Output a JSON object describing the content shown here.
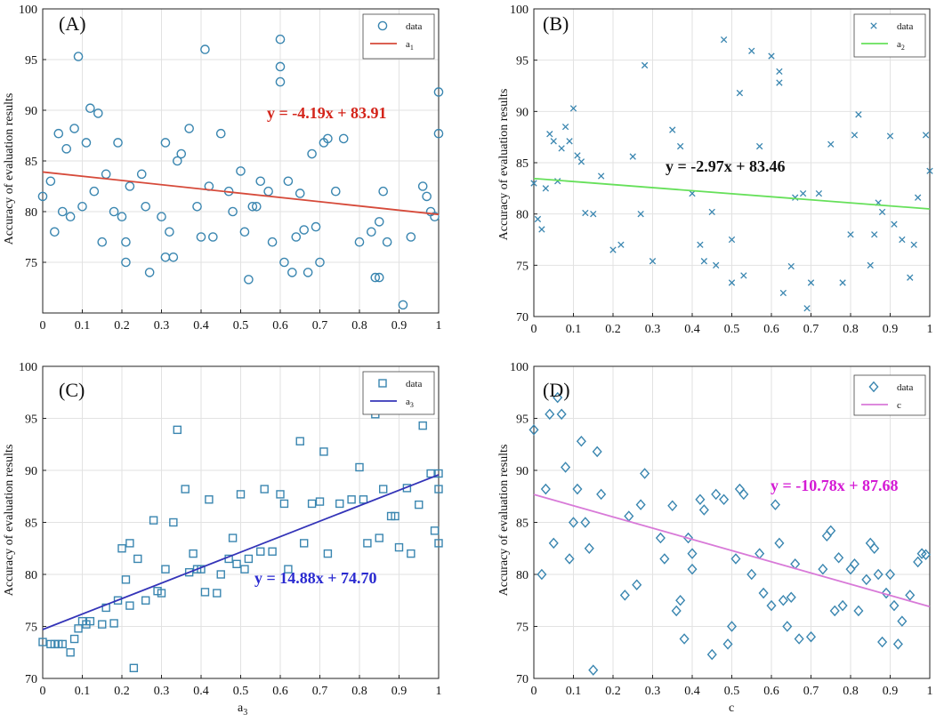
{
  "chart_data": [
    {
      "type": "scatter",
      "panel_label": "(A)",
      "xlabel": "",
      "ylabel": "Accuracy of evaluation results",
      "xlim": [
        0,
        1
      ],
      "ylim": [
        70,
        100
      ],
      "xticks": [
        "0",
        "0.1",
        "0.2",
        "0.3",
        "0.4",
        "0.5",
        "0.6",
        "0.7",
        "0.8",
        "0.9",
        "1"
      ],
      "yticks": [
        "75",
        "80",
        "85",
        "90",
        "95",
        "100"
      ],
      "grid": true,
      "legend": {
        "position": "top-right",
        "entries": [
          "data",
          "a",
          "1"
        ]
      },
      "marker": "circle",
      "fit_color": "#d64a3a",
      "equation": "y = -4.19x + 83.91",
      "equation_color": "#d4241a",
      "fit": {
        "slope": -4.19,
        "intercept": 83.91
      },
      "x": [
        0.0,
        0.02,
        0.03,
        0.04,
        0.05,
        0.06,
        0.07,
        0.08,
        0.09,
        0.1,
        0.11,
        0.12,
        0.13,
        0.14,
        0.15,
        0.16,
        0.18,
        0.19,
        0.2,
        0.21,
        0.21,
        0.22,
        0.25,
        0.26,
        0.27,
        0.3,
        0.31,
        0.31,
        0.32,
        0.33,
        0.34,
        0.35,
        0.37,
        0.39,
        0.4,
        0.41,
        0.42,
        0.43,
        0.45,
        0.47,
        0.48,
        0.5,
        0.51,
        0.52,
        0.53,
        0.54,
        0.55,
        0.57,
        0.58,
        0.6,
        0.6,
        0.6,
        0.61,
        0.62,
        0.63,
        0.64,
        0.65,
        0.66,
        0.67,
        0.68,
        0.69,
        0.7,
        0.71,
        0.72,
        0.74,
        0.76,
        0.8,
        0.83,
        0.84,
        0.85,
        0.85,
        0.86,
        0.87,
        0.91,
        0.93,
        0.96,
        0.97,
        0.98,
        0.99,
        1.0,
        1.0
      ],
      "y": [
        81.5,
        83,
        78,
        87.7,
        80,
        86.2,
        79.5,
        88.2,
        95.3,
        80.5,
        86.8,
        90.2,
        82,
        89.7,
        77,
        83.7,
        80,
        86.8,
        79.5,
        77,
        75,
        82.5,
        83.7,
        80.5,
        74,
        79.5,
        86.8,
        75.5,
        78,
        75.5,
        85,
        85.7,
        88.2,
        80.5,
        77.5,
        96,
        82.5,
        77.5,
        87.7,
        82,
        80,
        84,
        78,
        73.3,
        80.5,
        80.5,
        83,
        82,
        77,
        97,
        94.3,
        92.8,
        75,
        83,
        74,
        77.5,
        81.8,
        78.2,
        74,
        85.7,
        78.5,
        75,
        86.8,
        87.2,
        82,
        87.2,
        77,
        78,
        73.5,
        73.5,
        79,
        82,
        77,
        70.8,
        77.5,
        82.5,
        81.5,
        80,
        79.5,
        91.8,
        87.7
      ]
    },
    {
      "type": "scatter",
      "panel_label": "(B)",
      "xlabel": "",
      "ylabel": "Accuracy of evaluation results",
      "xlim": [
        0,
        1
      ],
      "ylim": [
        70,
        100
      ],
      "xticks": [
        "0",
        "0.1",
        "0.2",
        "0.3",
        "0.4",
        "0.5",
        "0.6",
        "0.7",
        "0.8",
        "0.9",
        "1"
      ],
      "yticks": [
        "70",
        "75",
        "80",
        "85",
        "90",
        "95",
        "100"
      ],
      "grid": true,
      "legend": {
        "position": "top-right",
        "entries": [
          "data",
          "a",
          "2"
        ]
      },
      "marker": "x",
      "fit_color": "#66e05a",
      "equation": "y = -2.97x + 83.46",
      "equation_color": "#111111",
      "fit": {
        "slope": -2.97,
        "intercept": 83.46
      },
      "x": [
        0.0,
        0.01,
        0.02,
        0.03,
        0.04,
        0.05,
        0.06,
        0.07,
        0.08,
        0.09,
        0.1,
        0.11,
        0.12,
        0.13,
        0.15,
        0.17,
        0.2,
        0.22,
        0.25,
        0.27,
        0.28,
        0.3,
        0.35,
        0.37,
        0.4,
        0.42,
        0.43,
        0.45,
        0.46,
        0.48,
        0.5,
        0.5,
        0.52,
        0.53,
        0.55,
        0.57,
        0.6,
        0.62,
        0.62,
        0.63,
        0.65,
        0.66,
        0.68,
        0.69,
        0.7,
        0.72,
        0.75,
        0.78,
        0.8,
        0.81,
        0.82,
        0.85,
        0.86,
        0.87,
        0.88,
        0.9,
        0.91,
        0.93,
        0.95,
        0.96,
        0.97,
        0.99,
        1.0
      ],
      "y": [
        83,
        79.5,
        78.5,
        82.5,
        87.8,
        87.1,
        83.2,
        86.4,
        88.5,
        87.1,
        90.3,
        85.7,
        85.1,
        80.1,
        80,
        83.7,
        76.5,
        77,
        85.6,
        80,
        94.5,
        75.4,
        88.2,
        86.6,
        82,
        77,
        75.4,
        80.2,
        75,
        97,
        73.3,
        77.5,
        91.8,
        74,
        95.9,
        86.6,
        95.4,
        92.8,
        93.9,
        72.3,
        74.9,
        81.6,
        82,
        70.8,
        73.3,
        82,
        86.8,
        73.3,
        78,
        87.7,
        89.7,
        75,
        78,
        81.1,
        80.2,
        87.6,
        79,
        77.5,
        73.8,
        77,
        81.6,
        87.7,
        84.2
      ]
    },
    {
      "type": "scatter",
      "panel_label": "(C)",
      "xlabel": "a",
      "xlabel_sub": "3",
      "ylabel": "Accuracy of evaluation results",
      "xlim": [
        0,
        1
      ],
      "ylim": [
        70,
        100
      ],
      "xticks": [
        "0",
        "0.1",
        "0.2",
        "0.3",
        "0.4",
        "0.5",
        "0.6",
        "0.7",
        "0.8",
        "0.9",
        "1"
      ],
      "yticks": [
        "70",
        "75",
        "80",
        "85",
        "90",
        "95",
        "100"
      ],
      "grid": true,
      "legend": {
        "position": "top-right",
        "entries": [
          "data",
          "a",
          "3"
        ]
      },
      "marker": "square",
      "fit_color": "#3434b8",
      "equation": "y = 14.88x + 74.70",
      "equation_color": "#2a2ad0",
      "fit": {
        "slope": 14.88,
        "intercept": 74.7
      },
      "x": [
        0.0,
        0.02,
        0.03,
        0.04,
        0.05,
        0.07,
        0.08,
        0.09,
        0.1,
        0.11,
        0.12,
        0.15,
        0.16,
        0.18,
        0.19,
        0.2,
        0.21,
        0.22,
        0.22,
        0.23,
        0.24,
        0.26,
        0.28,
        0.29,
        0.3,
        0.31,
        0.33,
        0.34,
        0.36,
        0.37,
        0.38,
        0.39,
        0.4,
        0.41,
        0.42,
        0.44,
        0.45,
        0.47,
        0.48,
        0.49,
        0.5,
        0.51,
        0.52,
        0.55,
        0.56,
        0.58,
        0.6,
        0.61,
        0.62,
        0.65,
        0.66,
        0.68,
        0.7,
        0.71,
        0.72,
        0.75,
        0.78,
        0.8,
        0.81,
        0.82,
        0.84,
        0.85,
        0.86,
        0.88,
        0.89,
        0.9,
        0.92,
        0.93,
        0.95,
        0.96,
        0.97,
        0.98,
        0.99,
        1.0,
        1.0,
        1.0
      ],
      "y": [
        73.5,
        73.3,
        73.3,
        73.3,
        73.3,
        72.5,
        73.8,
        74.8,
        75.5,
        75.2,
        75.5,
        75.2,
        76.8,
        75.3,
        77.5,
        82.5,
        79.5,
        77,
        83,
        71,
        81.5,
        77.5,
        85.2,
        78.4,
        78.2,
        80.5,
        85,
        93.9,
        88.2,
        80.2,
        82,
        80.5,
        80.5,
        78.3,
        87.2,
        78.2,
        80,
        81.5,
        83.5,
        81,
        87.7,
        80.5,
        81.5,
        82.2,
        88.2,
        82.2,
        87.7,
        86.8,
        80.5,
        92.8,
        83,
        86.8,
        87,
        91.8,
        82,
        86.8,
        87.2,
        90.3,
        87.2,
        83,
        95.4,
        83.5,
        88.2,
        85.6,
        85.6,
        82.6,
        88.3,
        82,
        86.7,
        94.3,
        96,
        89.7,
        84.2,
        88.2,
        83,
        89.7
      ]
    },
    {
      "type": "scatter",
      "panel_label": "(D)",
      "xlabel": "c",
      "ylabel": "Accuracy of evaluation results",
      "xlim": [
        0,
        1
      ],
      "ylim": [
        70,
        100
      ],
      "xticks": [
        "0",
        "0.1",
        "0.2",
        "0.3",
        "0.4",
        "0.5",
        "0.6",
        "0.7",
        "0.8",
        "0.9",
        "1"
      ],
      "yticks": [
        "70",
        "75",
        "80",
        "85",
        "90",
        "95",
        "100"
      ],
      "grid": true,
      "legend": {
        "position": "top-right",
        "entries": [
          "data",
          "c"
        ]
      },
      "marker": "diamond",
      "fit_color": "#d87ad8",
      "equation": "y = -10.78x + 87.68",
      "equation_color": "#d41ad4",
      "fit": {
        "slope": -10.78,
        "intercept": 87.68
      },
      "x": [
        0.0,
        0.02,
        0.03,
        0.04,
        0.05,
        0.06,
        0.07,
        0.08,
        0.09,
        0.1,
        0.11,
        0.12,
        0.13,
        0.14,
        0.15,
        0.16,
        0.17,
        0.23,
        0.24,
        0.26,
        0.27,
        0.28,
        0.32,
        0.33,
        0.35,
        0.36,
        0.37,
        0.38,
        0.39,
        0.4,
        0.4,
        0.42,
        0.43,
        0.45,
        0.46,
        0.48,
        0.49,
        0.5,
        0.51,
        0.52,
        0.53,
        0.55,
        0.57,
        0.58,
        0.6,
        0.61,
        0.62,
        0.63,
        0.64,
        0.65,
        0.66,
        0.67,
        0.7,
        0.73,
        0.74,
        0.75,
        0.76,
        0.77,
        0.78,
        0.8,
        0.81,
        0.82,
        0.84,
        0.85,
        0.86,
        0.87,
        0.88,
        0.89,
        0.9,
        0.91,
        0.92,
        0.93,
        0.95,
        0.97,
        0.98,
        0.99
      ],
      "y": [
        93.9,
        80,
        88.2,
        95.4,
        83,
        97,
        95.4,
        90.3,
        81.5,
        85,
        88.2,
        92.8,
        85,
        82.5,
        70.8,
        91.8,
        87.7,
        78,
        85.6,
        79,
        86.7,
        89.7,
        83.5,
        81.5,
        86.6,
        76.5,
        77.5,
        73.8,
        83.5,
        80.5,
        82,
        87.2,
        86.2,
        72.3,
        87.7,
        87.2,
        73.3,
        75,
        81.5,
        88.2,
        87.7,
        80,
        82,
        78.2,
        77,
        86.7,
        83,
        77.5,
        75,
        77.8,
        81,
        73.8,
        74,
        80.5,
        83.7,
        84.2,
        76.5,
        81.6,
        77,
        80.5,
        81,
        76.5,
        79.5,
        83,
        82.5,
        80,
        73.5,
        78.2,
        80,
        77,
        73.3,
        75.5,
        78,
        81.2,
        82,
        81.9
      ]
    }
  ]
}
